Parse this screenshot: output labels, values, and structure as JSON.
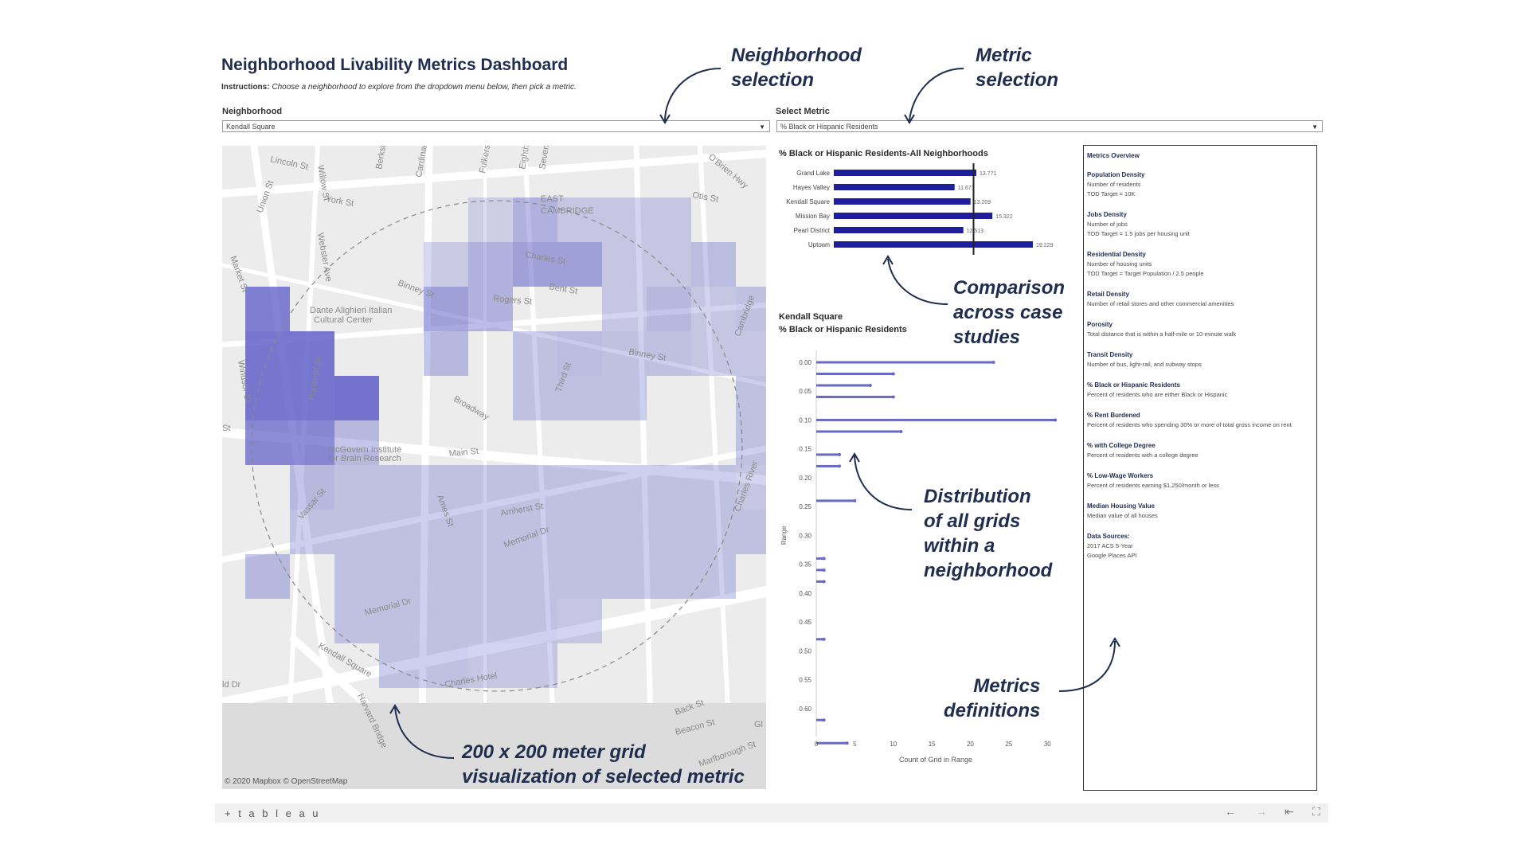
{
  "dashboard": {
    "title": "Neighborhood Livability Metrics Dashboard",
    "instructions_label": "Instructions:",
    "instructions_text": "Choose a neighborhood to explore from the dropdown menu below, then pick a metric."
  },
  "filters": {
    "neighborhood_label": "Neighborhood",
    "neighborhood_value": "Kendall Square",
    "metric_label": "Select Metric",
    "metric_value": "% Black or Hispanic Residents"
  },
  "annotations": {
    "neighborhood_selection": [
      "Neighborhood",
      "selection"
    ],
    "metric_selection": [
      "Metric",
      "selection"
    ],
    "comparison": [
      "Comparison",
      "across case",
      "studies"
    ],
    "distribution": [
      "Distribution",
      "of all grids",
      "within a",
      "neighborhood"
    ],
    "metrics_definitions": [
      "Metrics",
      "definitions"
    ],
    "grid_visualization": [
      "200 x 200 meter grid",
      "visualization of selected metric"
    ]
  },
  "map": {
    "attribution": "© 2020 Mapbox © OpenStreetMap",
    "grid_color": "#5a5ac8",
    "street_labels": [
      "Lincoln St",
      "Willow St",
      "Berkshire St",
      "Cardinal Medeiros Ave",
      "Fulkerson St",
      "Eighth St",
      "Seventh St",
      "O'Brien Hwy",
      "Otis St",
      "EAST",
      "CAMBRIDGE",
      "Union St",
      "York St",
      "Webster Ave",
      "Charles St",
      "Market St",
      "Binney St",
      "Rogers St",
      "Bent St",
      "Dante Alighieri Italian",
      "Cultural Center",
      "Windsor St",
      "Portland St",
      "Broadway",
      "Third St",
      "Binney St",
      "Cambridge",
      "St",
      "McGovern Institute",
      "for Brain Research",
      "Main St",
      "Vassar St",
      "Ames St",
      "Amherst St",
      "Memorial Dr",
      "Charles River",
      "Memorial Dr",
      "Kendall Square",
      "Harvard Bridge",
      "Back St",
      "Beacon St",
      "Marlborough St",
      "Gl",
      "ld Dr",
      "Charles Hotel"
    ],
    "cells": [
      {
        "col": 5,
        "row": 0,
        "v": 0.08
      },
      {
        "col": 6,
        "row": 0,
        "v": 0.25
      },
      {
        "col": 7,
        "row": 0,
        "v": 0.12
      },
      {
        "col": 8,
        "row": 0,
        "v": 0.12
      },
      {
        "col": 9,
        "row": 0,
        "v": 0.12
      },
      {
        "col": 4,
        "row": 1,
        "v": 0.1
      },
      {
        "col": 5,
        "row": 1,
        "v": 0.25
      },
      {
        "col": 6,
        "row": 1,
        "v": 0.35
      },
      {
        "col": 7,
        "row": 1,
        "v": 0.35
      },
      {
        "col": 8,
        "row": 1,
        "v": 0.12
      },
      {
        "col": 9,
        "row": 1,
        "v": 0.12
      },
      {
        "col": 10,
        "row": 1,
        "v": 0.18
      },
      {
        "col": 0,
        "row": 2,
        "v": 0.55
      },
      {
        "col": 4,
        "row": 2,
        "v": 0.35
      },
      {
        "col": 5,
        "row": 2,
        "v": 0.25
      },
      {
        "col": 8,
        "row": 2,
        "v": 0.12
      },
      {
        "col": 9,
        "row": 2,
        "v": 0.2
      },
      {
        "col": 10,
        "row": 2,
        "v": 0.12
      },
      {
        "col": 11,
        "row": 2,
        "v": 0.15
      },
      {
        "col": 0,
        "row": 3,
        "v": 0.6
      },
      {
        "col": 1,
        "row": 3,
        "v": 0.6
      },
      {
        "col": 4,
        "row": 3,
        "v": 0.2
      },
      {
        "col": 6,
        "row": 3,
        "v": 0.15
      },
      {
        "col": 7,
        "row": 3,
        "v": 0.18
      },
      {
        "col": 8,
        "row": 3,
        "v": 0.15
      },
      {
        "col": 9,
        "row": 3,
        "v": 0.15
      },
      {
        "col": 10,
        "row": 3,
        "v": 0.12
      },
      {
        "col": 11,
        "row": 3,
        "v": 0.12
      },
      {
        "col": 0,
        "row": 4,
        "v": 0.6
      },
      {
        "col": 1,
        "row": 4,
        "v": 0.6
      },
      {
        "col": 2,
        "row": 4,
        "v": 0.62
      },
      {
        "col": 6,
        "row": 4,
        "v": 0.15
      },
      {
        "col": 7,
        "row": 4,
        "v": 0.15
      },
      {
        "col": 8,
        "row": 4,
        "v": 0.15
      },
      {
        "col": 11,
        "row": 4,
        "v": 0.15
      },
      {
        "col": 0,
        "row": 5,
        "v": 0.5
      },
      {
        "col": 1,
        "row": 5,
        "v": 0.5
      },
      {
        "col": 2,
        "row": 5,
        "v": 0.2
      },
      {
        "col": 11,
        "row": 5,
        "v": 0.15
      },
      {
        "col": 1,
        "row": 6,
        "v": 0.2
      },
      {
        "col": 2,
        "row": 6,
        "v": 0.15
      },
      {
        "col": 3,
        "row": 6,
        "v": 0.15
      },
      {
        "col": 4,
        "row": 6,
        "v": 0.15
      },
      {
        "col": 5,
        "row": 6,
        "v": 0.15
      },
      {
        "col": 6,
        "row": 6,
        "v": 0.15
      },
      {
        "col": 7,
        "row": 6,
        "v": 0.15
      },
      {
        "col": 8,
        "row": 6,
        "v": 0.15
      },
      {
        "col": 9,
        "row": 6,
        "v": 0.15
      },
      {
        "col": 10,
        "row": 6,
        "v": 0.15
      },
      {
        "col": 11,
        "row": 6,
        "v": 0.12
      },
      {
        "col": 1,
        "row": 7,
        "v": 0.15
      },
      {
        "col": 2,
        "row": 7,
        "v": 0.15
      },
      {
        "col": 3,
        "row": 7,
        "v": 0.15
      },
      {
        "col": 4,
        "row": 7,
        "v": 0.15
      },
      {
        "col": 5,
        "row": 7,
        "v": 0.15
      },
      {
        "col": 6,
        "row": 7,
        "v": 0.15
      },
      {
        "col": 7,
        "row": 7,
        "v": 0.15
      },
      {
        "col": 8,
        "row": 7,
        "v": 0.15
      },
      {
        "col": 9,
        "row": 7,
        "v": 0.15
      },
      {
        "col": 10,
        "row": 7,
        "v": 0.15
      },
      {
        "col": 11,
        "row": 7,
        "v": 0.15
      },
      {
        "col": 0,
        "row": 8,
        "v": 0.2
      },
      {
        "col": 2,
        "row": 8,
        "v": 0.15
      },
      {
        "col": 3,
        "row": 8,
        "v": 0.15
      },
      {
        "col": 4,
        "row": 8,
        "v": 0.15
      },
      {
        "col": 5,
        "row": 8,
        "v": 0.15
      },
      {
        "col": 6,
        "row": 8,
        "v": 0.15
      },
      {
        "col": 7,
        "row": 8,
        "v": 0.15
      },
      {
        "col": 8,
        "row": 8,
        "v": 0.15
      },
      {
        "col": 9,
        "row": 8,
        "v": 0.15
      },
      {
        "col": 10,
        "row": 8,
        "v": 0.15
      },
      {
        "col": 2,
        "row": 9,
        "v": 0.15
      },
      {
        "col": 3,
        "row": 9,
        "v": 0.15
      },
      {
        "col": 4,
        "row": 9,
        "v": 0.15
      },
      {
        "col": 5,
        "row": 9,
        "v": 0.15
      },
      {
        "col": 6,
        "row": 9,
        "v": 0.15
      },
      {
        "col": 7,
        "row": 9,
        "v": 0.12
      },
      {
        "col": 3,
        "row": 10,
        "v": 0.15
      },
      {
        "col": 4,
        "row": 10,
        "v": 0.15
      },
      {
        "col": 5,
        "row": 10,
        "v": 0.12
      },
      {
        "col": 6,
        "row": 10,
        "v": 0.12
      }
    ]
  },
  "chart_data": [
    {
      "type": "bar",
      "title": "% Black or Hispanic Residents-All Neighborhoods",
      "categories": [
        "Grand Lake",
        "Hayes Valley",
        "Kendall Square",
        "Mission Bay",
        "Pearl District",
        "Uptown"
      ],
      "values": [
        13.771,
        11.671,
        13.209,
        15.322,
        12.513,
        19.229
      ],
      "value_labels": [
        "13.771",
        "11.671",
        "13.209",
        "15.322",
        "12.513",
        "19.229"
      ],
      "reference_line": 13.5,
      "xlim": [
        0,
        20
      ],
      "color": "#1f1f9e"
    },
    {
      "type": "bar",
      "orientation": "horizontal",
      "title": "Kendall Square",
      "subtitle": "% Black or Hispanic Residents",
      "xlabel": "Count of Grid in Range",
      "ylabel": "Range",
      "y_ticks": [
        "0.00",
        "0.05",
        "0.10",
        "0.15",
        "0.20",
        "0.25",
        "0.30",
        "0.35",
        "0.40",
        "0.45",
        "0.50",
        "0.55",
        "0.60"
      ],
      "x_ticks": [
        0,
        5,
        10,
        15,
        20,
        25,
        30
      ],
      "xlim": [
        0,
        31
      ],
      "ylim": [
        0,
        0.6
      ],
      "color": "#6a6ac4",
      "bins": [
        {
          "range": 0.0,
          "count": 23
        },
        {
          "range": 0.02,
          "count": 10
        },
        {
          "range": 0.04,
          "count": 7
        },
        {
          "range": 0.06,
          "count": 10
        },
        {
          "range": 0.1,
          "count": 31
        },
        {
          "range": 0.12,
          "count": 11
        },
        {
          "range": 0.16,
          "count": 3
        },
        {
          "range": 0.18,
          "count": 3
        },
        {
          "range": 0.24,
          "count": 5
        },
        {
          "range": 0.34,
          "count": 1
        },
        {
          "range": 0.36,
          "count": 1
        },
        {
          "range": 0.38,
          "count": 1
        },
        {
          "range": 0.48,
          "count": 1
        },
        {
          "range": 0.62,
          "count": 1
        },
        {
          "range": 0.66,
          "count": 4
        }
      ]
    }
  ],
  "metrics_overview": {
    "heading": "Metrics Overview",
    "items": [
      {
        "title": "Population Density",
        "lines": [
          "Number of residents",
          "TOD Target = 10K"
        ]
      },
      {
        "title": "Jobs Density",
        "lines": [
          "Number of jobs",
          "TOD Target = 1.5 jobs per housing unit"
        ]
      },
      {
        "title": "Residential Density",
        "lines": [
          "Number of housing units",
          "TOD Target = Target Population / 2.5 people"
        ]
      },
      {
        "title": "Retail Density",
        "lines": [
          "Number of retail stores and other commercial amenities"
        ]
      },
      {
        "title": "Porosity",
        "lines": [
          "Total distance that is within a half-mile or 10-minute walk"
        ]
      },
      {
        "title": "Transit Density",
        "lines": [
          "Number of bus, light-rail, and subway stops"
        ]
      },
      {
        "title": "% Black or Hispanic Residents",
        "lines": [
          "Percent of residents who are either Black or Hispanic"
        ]
      },
      {
        "title": "% Rent Burdened",
        "lines": [
          "Percent of residents who spending 30% or more of total gross income on rent"
        ]
      },
      {
        "title": "% with College Degree",
        "lines": [
          "Percent of residents with a college degree"
        ]
      },
      {
        "title": "% Low-Wage Workers",
        "lines": [
          "Percent of residents earning $1,250/month or less"
        ]
      },
      {
        "title": "Median Housing Value",
        "lines": [
          "Median value of all houses"
        ]
      },
      {
        "title": "Data Sources:",
        "lines": [
          "2017 ACS 5-Year",
          "Google Places API"
        ]
      }
    ]
  },
  "footer": {
    "logo": "+ t a b l e a u",
    "nav": [
      "←",
      "→",
      "⇤",
      "⛶"
    ]
  }
}
